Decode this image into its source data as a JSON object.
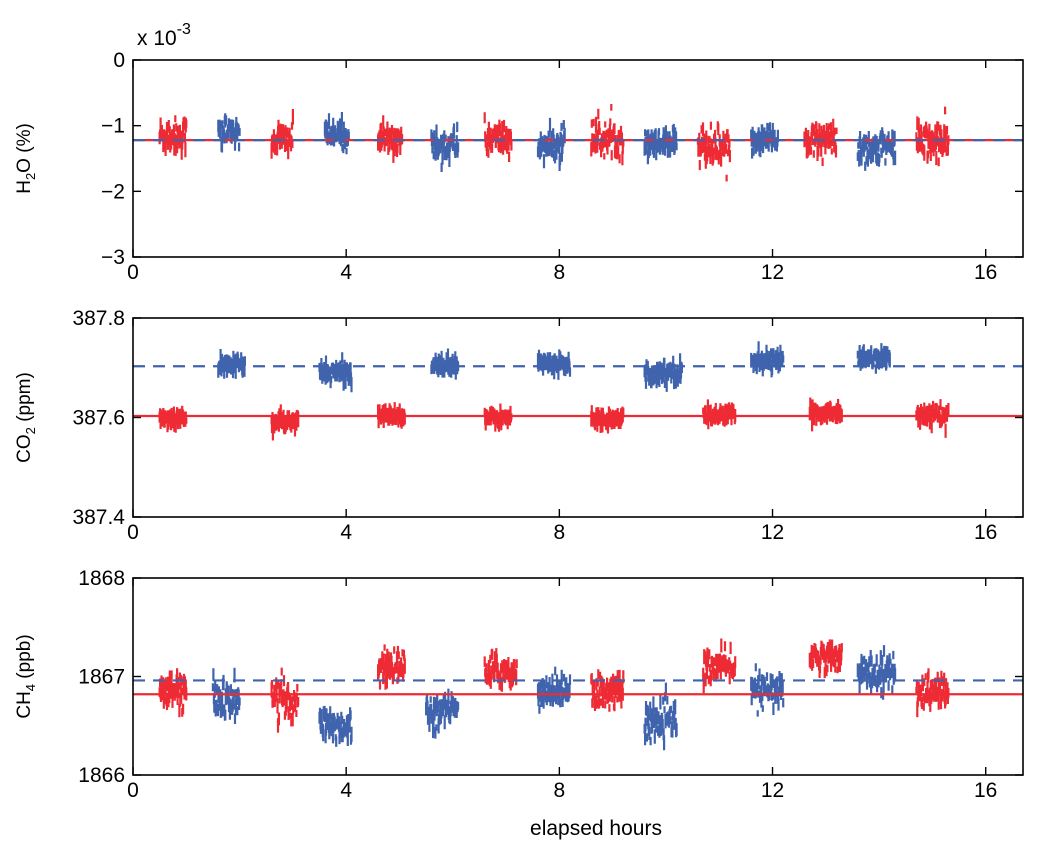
{
  "chart_data": [
    {
      "type": "scatter",
      "ylabel_parts": [
        "H",
        "2",
        "O (%)"
      ],
      "exponent_label": "x 10",
      "exponent_power": "-3",
      "xlim": [
        0,
        16.7
      ],
      "ylim": [
        -3,
        0
      ],
      "xticks": [
        0,
        4,
        8,
        12,
        16
      ],
      "yticks": [
        -3,
        -2,
        -1,
        0
      ],
      "ytick_labels": [
        "−3",
        "−2",
        "−1",
        "0"
      ],
      "series": [
        {
          "color": "#ee2b34",
          "reference_line": -1.22,
          "reference_style": "solid",
          "clusters": [
            {
              "x": [
                0.5,
                1.0
              ],
              "center": -1.15,
              "spread": 0.3
            },
            {
              "x": [
                2.6,
                3.0
              ],
              "center": -1.2,
              "spread": 0.3
            },
            {
              "x": [
                4.6,
                5.05
              ],
              "center": -1.2,
              "spread": 0.25
            },
            {
              "x": [
                6.6,
                7.1
              ],
              "center": -1.2,
              "spread": 0.3
            },
            {
              "x": [
                8.6,
                9.2
              ],
              "center": -1.2,
              "spread": 0.3
            },
            {
              "x": [
                10.6,
                11.2
              ],
              "center": -1.3,
              "spread": 0.35
            },
            {
              "x": [
                12.6,
                13.2
              ],
              "center": -1.2,
              "spread": 0.25
            },
            {
              "x": [
                14.7,
                15.3
              ],
              "center": -1.25,
              "spread": 0.35
            }
          ]
        },
        {
          "color": "#3f63ad",
          "reference_line": -1.22,
          "reference_style": "dashed",
          "clusters": [
            {
              "x": [
                1.6,
                2.0
              ],
              "center": -1.1,
              "spread": 0.28
            },
            {
              "x": [
                3.6,
                4.05
              ],
              "center": -1.15,
              "spread": 0.25
            },
            {
              "x": [
                5.6,
                6.1
              ],
              "center": -1.3,
              "spread": 0.28
            },
            {
              "x": [
                7.6,
                8.1
              ],
              "center": -1.3,
              "spread": 0.28
            },
            {
              "x": [
                9.6,
                10.2
              ],
              "center": -1.3,
              "spread": 0.25
            },
            {
              "x": [
                11.6,
                12.1
              ],
              "center": -1.2,
              "spread": 0.25
            },
            {
              "x": [
                13.6,
                14.3
              ],
              "center": -1.35,
              "spread": 0.3
            }
          ]
        }
      ]
    },
    {
      "type": "scatter",
      "ylabel_parts": [
        "CO",
        "2",
        " (ppm)"
      ],
      "xlim": [
        0,
        16.7
      ],
      "ylim": [
        387.4,
        387.8
      ],
      "xticks": [
        0,
        4,
        8,
        12,
        16
      ],
      "yticks": [
        387.4,
        387.6,
        387.8
      ],
      "ytick_labels": [
        "387.4",
        "387.6",
        "387.8"
      ],
      "series": [
        {
          "color": "#ee2b34",
          "reference_line": 387.603,
          "reference_style": "solid",
          "clusters": [
            {
              "x": [
                0.5,
                1.0
              ],
              "center": 387.598,
              "spread": 0.018
            },
            {
              "x": [
                2.6,
                3.1
              ],
              "center": 387.59,
              "spread": 0.022
            },
            {
              "x": [
                4.6,
                5.1
              ],
              "center": 387.605,
              "spread": 0.015
            },
            {
              "x": [
                6.6,
                7.1
              ],
              "center": 387.6,
              "spread": 0.018
            },
            {
              "x": [
                8.6,
                9.2
              ],
              "center": 387.597,
              "spread": 0.018
            },
            {
              "x": [
                10.7,
                11.3
              ],
              "center": 387.605,
              "spread": 0.018
            },
            {
              "x": [
                12.7,
                13.3
              ],
              "center": 387.61,
              "spread": 0.018
            },
            {
              "x": [
                14.7,
                15.3
              ],
              "center": 387.605,
              "spread": 0.02
            }
          ]
        },
        {
          "color": "#3f63ad",
          "reference_line": 387.703,
          "reference_style": "dashed",
          "clusters": [
            {
              "x": [
                1.6,
                2.1
              ],
              "center": 387.705,
              "spread": 0.02
            },
            {
              "x": [
                3.5,
                4.1
              ],
              "center": 387.69,
              "spread": 0.022
            },
            {
              "x": [
                5.6,
                6.1
              ],
              "center": 387.705,
              "spread": 0.018
            },
            {
              "x": [
                7.6,
                8.2
              ],
              "center": 387.71,
              "spread": 0.017
            },
            {
              "x": [
                9.6,
                10.3
              ],
              "center": 387.69,
              "spread": 0.025
            },
            {
              "x": [
                11.6,
                12.2
              ],
              "center": 387.715,
              "spread": 0.018
            },
            {
              "x": [
                13.6,
                14.2
              ],
              "center": 387.72,
              "spread": 0.018
            }
          ]
        }
      ]
    },
    {
      "type": "scatter",
      "ylabel_parts": [
        "CH",
        "4",
        " (ppb)"
      ],
      "xlabel": "elapsed hours",
      "xlim": [
        0,
        16.7
      ],
      "ylim": [
        1866,
        1868
      ],
      "xticks": [
        0,
        4,
        8,
        12,
        16
      ],
      "yticks": [
        1866,
        1867,
        1868
      ],
      "ytick_labels": [
        "1866",
        "1867",
        "1868"
      ],
      "series": [
        {
          "color": "#ee2b34",
          "reference_line": 1866.82,
          "reference_style": "solid",
          "clusters": [
            {
              "x": [
                0.5,
                1.0
              ],
              "center": 1866.85,
              "spread": 0.2
            },
            {
              "x": [
                2.6,
                3.1
              ],
              "center": 1866.75,
              "spread": 0.25
            },
            {
              "x": [
                4.6,
                5.1
              ],
              "center": 1867.1,
              "spread": 0.2
            },
            {
              "x": [
                6.6,
                7.2
              ],
              "center": 1867.05,
              "spread": 0.2
            },
            {
              "x": [
                8.6,
                9.2
              ],
              "center": 1866.85,
              "spread": 0.2
            },
            {
              "x": [
                10.7,
                11.3
              ],
              "center": 1867.1,
              "spread": 0.18
            },
            {
              "x": [
                12.7,
                13.3
              ],
              "center": 1867.2,
              "spread": 0.15
            },
            {
              "x": [
                14.7,
                15.3
              ],
              "center": 1866.85,
              "spread": 0.2
            }
          ]
        },
        {
          "color": "#3f63ad",
          "reference_line": 1866.96,
          "reference_style": "dashed",
          "clusters": [
            {
              "x": [
                1.5,
                2.0
              ],
              "center": 1866.75,
              "spread": 0.25
            },
            {
              "x": [
                3.5,
                4.1
              ],
              "center": 1866.5,
              "spread": 0.2
            },
            {
              "x": [
                5.5,
                6.1
              ],
              "center": 1866.65,
              "spread": 0.2
            },
            {
              "x": [
                7.6,
                8.2
              ],
              "center": 1866.85,
              "spread": 0.18
            },
            {
              "x": [
                9.6,
                10.2
              ],
              "center": 1866.55,
              "spread": 0.2
            },
            {
              "x": [
                11.6,
                12.2
              ],
              "center": 1866.85,
              "spread": 0.2
            },
            {
              "x": [
                13.6,
                14.3
              ],
              "center": 1867.05,
              "spread": 0.2
            }
          ]
        }
      ]
    }
  ]
}
